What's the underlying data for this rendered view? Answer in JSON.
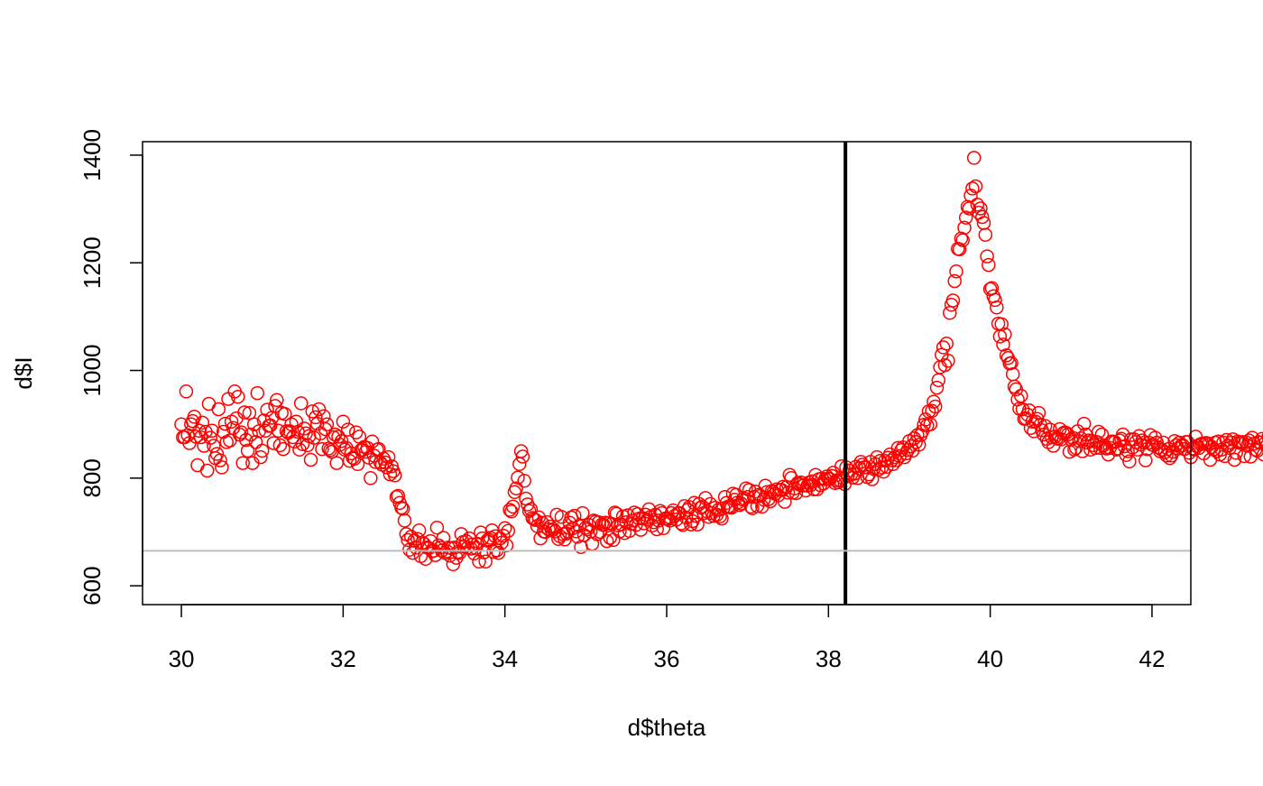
{
  "chart_data": {
    "type": "scatter",
    "title": "",
    "xlabel": "d$theta",
    "ylabel": "d$I",
    "xlim": [
      29.52,
      42.48
    ],
    "ylim": [
      565,
      1425
    ],
    "x_ticks": [
      "30",
      "32",
      "34",
      "36",
      "38",
      "40",
      "42"
    ],
    "y_ticks": [
      "600",
      "800",
      "1000",
      "1200",
      "1400"
    ],
    "point_color": "#ff0000",
    "marker": "open-circle",
    "grid": false,
    "legend": "none",
    "reference_lines": [
      {
        "orientation": "vertical",
        "value": 38.21,
        "color": "#000000"
      },
      {
        "orientation": "horizontal",
        "value": 665,
        "color": "#bebebe"
      }
    ],
    "x_start": 30.0,
    "x_step": 0.02,
    "points_y": [
      900,
      876,
      876,
      961,
      880,
      865,
      900,
      906,
      914,
      877,
      824,
      888,
      876,
      903,
      860,
      886,
      814,
      938,
      875,
      888,
      860,
      837,
      845,
      928,
      833,
      820,
      886,
      901,
      867,
      947,
      870,
      905,
      893,
      961,
      911,
      951,
      881,
      885,
      828,
      922,
      871,
      851,
      921,
      881,
      828,
      900,
      867,
      958,
      887,
      839,
      851,
      907,
      888,
      927,
      897,
      898,
      912,
      865,
      934,
      945,
      888,
      861,
      921,
      854,
      919,
      887,
      884,
      887,
      900,
      876,
      868,
      905,
      886,
      853,
      939,
      863,
      892,
      883,
      861,
      878,
      834,
      924,
      875,
      913,
      901,
      928,
      883,
      854,
      915,
      891,
      900,
      855,
      852,
      849,
      876,
      881,
      828,
      877,
      862,
      869,
      905,
      853,
      856,
      890,
      832,
      846,
      838,
      836,
      885,
      826,
      877,
      852,
      852,
      858,
      849,
      856,
      838,
      800,
      868,
      842,
      830,
      853,
      854,
      829,
      825,
      836,
      829,
      820,
      839,
      807,
      822,
      813,
      805,
      765,
      767,
      754,
      745,
      743,
      721,
      696,
      685,
      667,
      691,
      661,
      684,
      671,
      687,
      703,
      655,
      680,
      678,
      650,
      671,
      670,
      683,
      664,
      665,
      657,
      708,
      675,
      671,
      665,
      689,
      661,
      664,
      671,
      656,
      670,
      640,
      671,
      652,
      663,
      661,
      696,
      681,
      673,
      683,
      671,
      688,
      669,
      677,
      660,
      670,
      678,
      645,
      699,
      688,
      662,
      645,
      684,
      686,
      689,
      703,
      663,
      692,
      666,
      661,
      688,
      680,
      693,
      707,
      675,
      702,
      741,
      738,
      747,
      774,
      781,
      801,
      826,
      850,
      840,
      795,
      762,
      751,
      739,
      742,
      726,
      724,
      722,
      711,
      727,
      688,
      717,
      701,
      700,
      718,
      705,
      710,
      703,
      705,
      701,
      732,
      687,
      692,
      728,
      696,
      686,
      697,
      701,
      717,
      727,
      707,
      730,
      701,
      691,
      711,
      672,
      735,
      694,
      708,
      705,
      713,
      701,
      678,
      721,
      719,
      696,
      718,
      700,
      714,
      713,
      717,
      683,
      716,
      689,
      715,
      685,
      736,
      734,
      712,
      701,
      714,
      729,
      698,
      718,
      731,
      702,
      715,
      721,
      736,
      713,
      733,
      725,
      704,
      726,
      716,
      732,
      723,
      742,
      728,
      712,
      718,
      732,
      705,
      721,
      739,
      735,
      707,
      725,
      725,
      724,
      721,
      735,
      740,
      730,
      723,
      735,
      735,
      716,
      713,
      748,
      727,
      741,
      746,
      714,
      720,
      754,
      730,
      714,
      752,
      745,
      747,
      735,
      763,
      738,
      728,
      752,
      735,
      730,
      745,
      732,
      741,
      729,
      725,
      744,
      765,
      754,
      747,
      746,
      745,
      771,
      760,
      769,
      755,
      750,
      753,
      760,
      762,
      781,
      765,
      778,
      747,
      744,
      765,
      775,
      748,
      769,
      767,
      747,
      760,
      786,
      774,
      761,
      757,
      776,
      774,
      771,
      779,
      768,
      778,
      778,
      784,
      756,
      783,
      773,
      806,
      800,
      773,
      781,
      772,
      791,
      788,
      792,
      786,
      787,
      777,
      786,
      792,
      787,
      794,
      779,
      806,
      779,
      798,
      787,
      799,
      790,
      798,
      803,
      799,
      798,
      804,
      810,
      791,
      796,
      792,
      796,
      822,
      800,
      789,
      820,
      805,
      814,
      807,
      801,
      808,
      821,
      800,
      818,
      830,
      825,
      820,
      820,
      802,
      807,
      830,
      798,
      817,
      826,
      839,
      816,
      832,
      820,
      812,
      832,
      821,
      838,
      844,
      833,
      826,
      839,
      833,
      856,
      841,
      852,
      857,
      839,
      846,
      852,
      869,
      859,
      851,
      874,
      867,
      880,
      862,
      880,
      887,
      899,
      909,
      898,
      924,
      900,
      925,
      942,
      933,
      968,
      982,
      1006,
      1029,
      1043,
      1010,
      1050,
      1018,
      1107,
      1122,
      1130,
      1166,
      1184,
      1226,
      1225,
      1245,
      1242,
      1265,
      1284,
      1304,
      1301,
      1325,
      1338,
      1395,
      1342,
      1308,
      1293,
      1301,
      1285,
      1274,
      1252,
      1212,
      1196,
      1151,
      1153,
      1138,
      1131,
      1117,
      1087,
      1063,
      1086,
      1048,
      1067,
      1028,
      1023,
      1013,
      1014,
      993,
      970,
      965,
      946,
      929,
      953,
      928,
      910,
      911,
      918,
      926,
      893,
      905,
      887,
      905,
      910,
      921,
      899,
      889,
      881,
      897,
      873,
      867,
      890,
      876,
      860,
      877,
      874,
      873,
      891,
      872,
      883,
      885,
      884,
      881,
      849,
      872,
      875,
      853,
      856,
      887,
      869,
      874,
      850,
      901,
      881,
      866,
      870,
      853,
      869,
      861,
      856,
      867,
      886,
      856,
      881,
      861,
      856,
      855,
      844,
      856,
      868,
      868,
      867,
      853,
      855,
      870,
      873,
      881,
      859,
      843,
      850,
      831,
      872,
      857,
      872,
      867,
      853,
      878,
      862,
      870,
      866,
      833,
      854,
      866,
      880,
      862,
      861,
      875,
      866,
      857,
      850,
      853,
      866,
      848,
      842,
      854,
      837,
      842,
      849,
      869,
      861,
      855,
      866,
      860,
      861,
      854,
      867,
      867,
      847,
      839,
      855,
      853,
      877,
      860,
      856,
      863,
      864,
      846,
      865,
      865,
      862,
      834,
      858,
      853,
      866,
      850,
      868,
      844,
      853,
      866,
      841,
      871,
      860,
      856,
      866,
      872,
      834,
      847,
      868,
      866,
      865,
      867,
      841,
      867,
      860,
      870,
      840,
      875,
      864,
      853,
      851,
      867,
      866,
      873,
      844,
      865,
      860,
      877,
      845
    ]
  }
}
